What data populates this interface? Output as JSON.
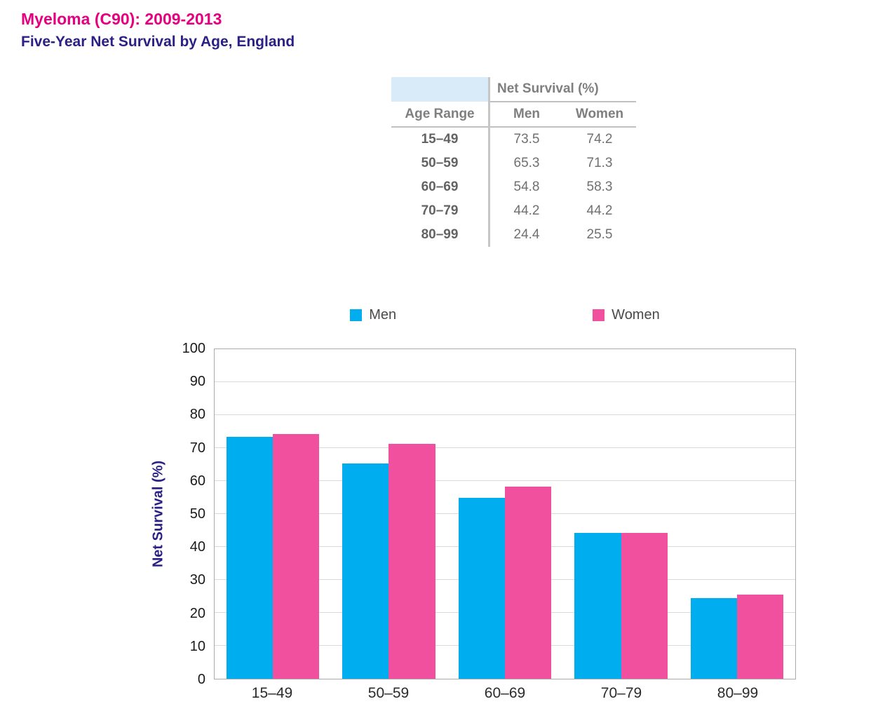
{
  "header": {
    "title": "Myeloma (C90): 2009-2013",
    "subtitle": "Five-Year Net Survival by Age, England"
  },
  "colors": {
    "title": "#e6007e",
    "subtitle": "#2a2086",
    "axis_title": "#2a2086",
    "men": "#00aeef",
    "women": "#f0509e"
  },
  "table": {
    "span_header": "Net Survival (%)",
    "col_headers": [
      "Age Range",
      "Men",
      "Women"
    ],
    "rows": [
      {
        "age": "15–49",
        "men": "73.5",
        "women": "74.2"
      },
      {
        "age": "50–59",
        "men": "65.3",
        "women": "71.3"
      },
      {
        "age": "60–69",
        "men": "54.8",
        "women": "58.3"
      },
      {
        "age": "70–79",
        "men": "44.2",
        "women": "44.2"
      },
      {
        "age": "80–99",
        "men": "24.4",
        "women": "25.5"
      }
    ]
  },
  "chart_data": {
    "type": "bar",
    "categories": [
      "15–49",
      "50–59",
      "60–69",
      "70–79",
      "80–99"
    ],
    "series": [
      {
        "name": "Men",
        "color": "#00aeef",
        "values": [
          73.5,
          65.3,
          54.8,
          44.2,
          24.4
        ]
      },
      {
        "name": "Women",
        "color": "#f0509e",
        "values": [
          74.2,
          71.3,
          58.3,
          44.2,
          25.5
        ]
      }
    ],
    "title": "Myeloma (C90): 2009-2013 — Five-Year Net Survival by Age, England",
    "xlabel": "",
    "ylabel": "Net Survival (%)",
    "ylim": [
      0,
      100
    ],
    "ytick_step": 10,
    "grid": true,
    "legend_position": "top"
  }
}
